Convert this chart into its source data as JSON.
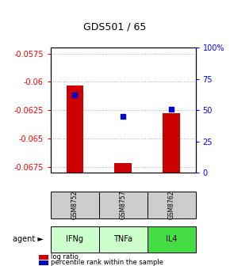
{
  "title": "GDS501 / 65",
  "samples": [
    "GSM8752",
    "GSM8757",
    "GSM8762"
  ],
  "agents": [
    "IFNg",
    "TNFa",
    "IL4"
  ],
  "log_ratios": [
    -0.0603,
    -0.06715,
    -0.0628
  ],
  "percentile_ranks": [
    62,
    45,
    51
  ],
  "ylim_left": [
    -0.06805,
    -0.057
  ],
  "ylim_right": [
    0,
    100
  ],
  "yticks_left": [
    -0.0675,
    -0.065,
    -0.0625,
    -0.06,
    -0.0575
  ],
  "yticks_right": [
    0,
    25,
    50,
    75,
    100
  ],
  "ytick_labels_left": [
    "-0.0675",
    "-0.065",
    "-0.0625",
    "-0.06",
    "-0.0575"
  ],
  "ytick_labels_right": [
    "0",
    "25",
    "50",
    "75",
    "100%"
  ],
  "bar_color": "#cc0000",
  "dot_color": "#0000cc",
  "gsm_box_color": "#cccccc",
  "agent_box_colors": [
    "#ccffcc",
    "#ccffcc",
    "#44dd44"
  ],
  "bar_width": 0.35
}
